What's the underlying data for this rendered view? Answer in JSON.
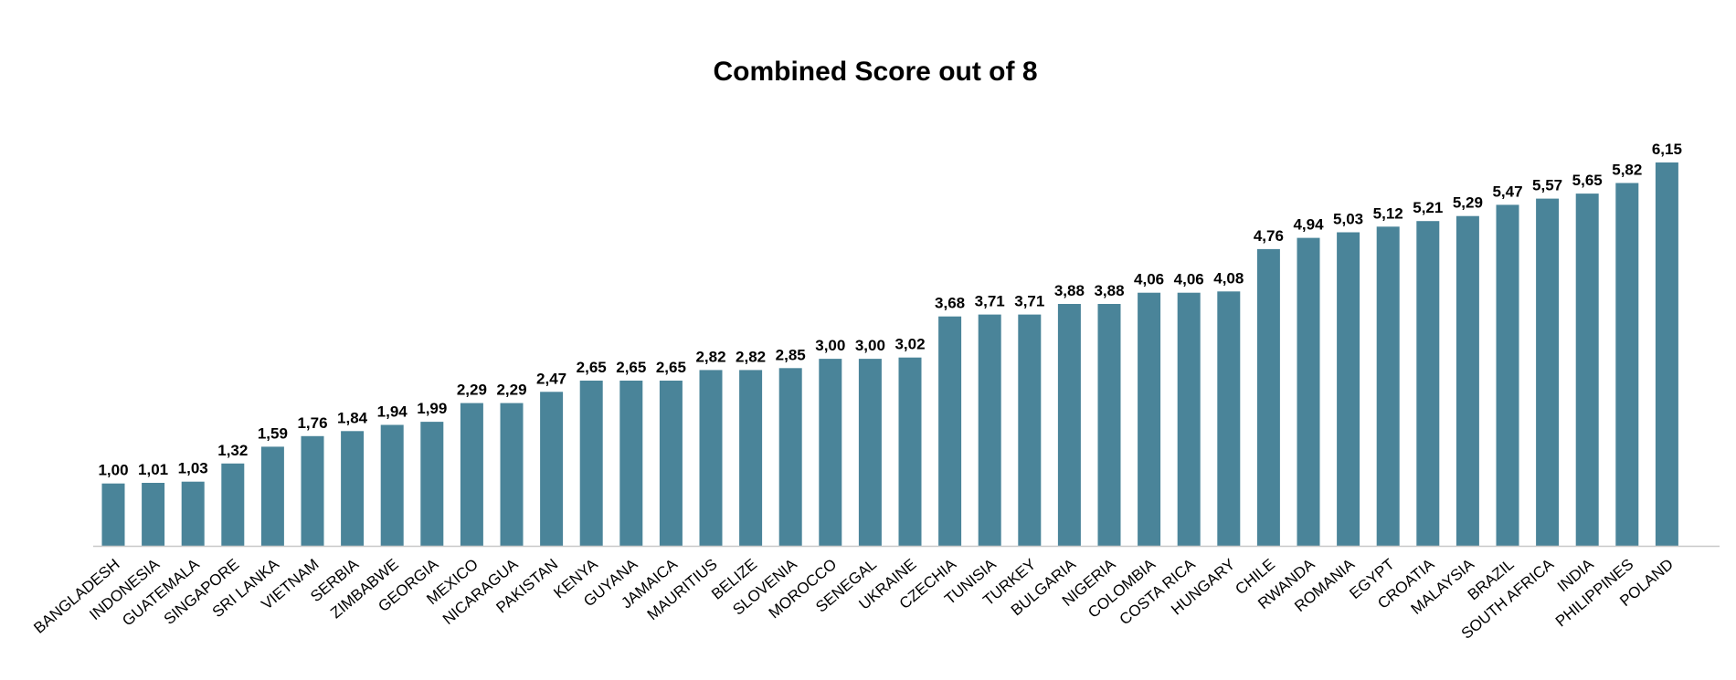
{
  "chart_data": {
    "type": "bar",
    "title": "Combined Score out of 8",
    "xlabel": "",
    "ylabel": "",
    "ylim": [
      0,
      6.6
    ],
    "grid": false,
    "legend": "none",
    "bar_color": "#4a8499",
    "axis_color": "#c8c8c8",
    "categories": [
      "BANGLADESH",
      "INDONESIA",
      "GUATEMALA",
      "SINGAPORE",
      "SRI LANKA",
      "VIETNAM",
      "SERBIA",
      "ZIMBABWE",
      "GEORGIA",
      "MEXICO",
      "NICARAGUA",
      "PAKISTAN",
      "KENYA",
      "GUYANA",
      "JAMAICA",
      "MAURITIUS",
      "BELIZE",
      "SLOVENIA",
      "MOROCCO",
      "SENEGAL",
      "UKRAINE",
      "CZECHIA",
      "TUNISIA",
      "TURKEY",
      "BULGARIA",
      "NIGERIA",
      "COLOMBIA",
      "COSTA RICA",
      "HUNGARY",
      "CHILE",
      "RWANDA",
      "ROMANIA",
      "EGYPT",
      "CROATIA",
      "MALAYSIA",
      "BRAZIL",
      "SOUTH AFRICA",
      "INDIA",
      "PHILIPPINES",
      "POLAND"
    ],
    "values": [
      1.0,
      1.01,
      1.03,
      1.32,
      1.59,
      1.76,
      1.84,
      1.94,
      1.99,
      2.29,
      2.29,
      2.47,
      2.65,
      2.65,
      2.65,
      2.82,
      2.82,
      2.85,
      3.0,
      3.0,
      3.02,
      3.68,
      3.71,
      3.71,
      3.88,
      3.88,
      4.06,
      4.06,
      4.08,
      4.76,
      4.94,
      5.03,
      5.12,
      5.21,
      5.29,
      5.47,
      5.57,
      5.65,
      5.82,
      6.15
    ],
    "value_labels": [
      "1,00",
      "1,01",
      "1,03",
      "1,32",
      "1,59",
      "1,76",
      "1,84",
      "1,94",
      "1,99",
      "2,29",
      "2,29",
      "2,47",
      "2,65",
      "2,65",
      "2,65",
      "2,82",
      "2,82",
      "2,85",
      "3,00",
      "3,00",
      "3,02",
      "3,68",
      "3,71",
      "3,71",
      "3,88",
      "3,88",
      "4,06",
      "4,06",
      "4,08",
      "4,76",
      "4,94",
      "5,03",
      "5,12",
      "5,21",
      "5,29",
      "5,47",
      "5,57",
      "5,65",
      "5,82",
      "6,15"
    ]
  }
}
